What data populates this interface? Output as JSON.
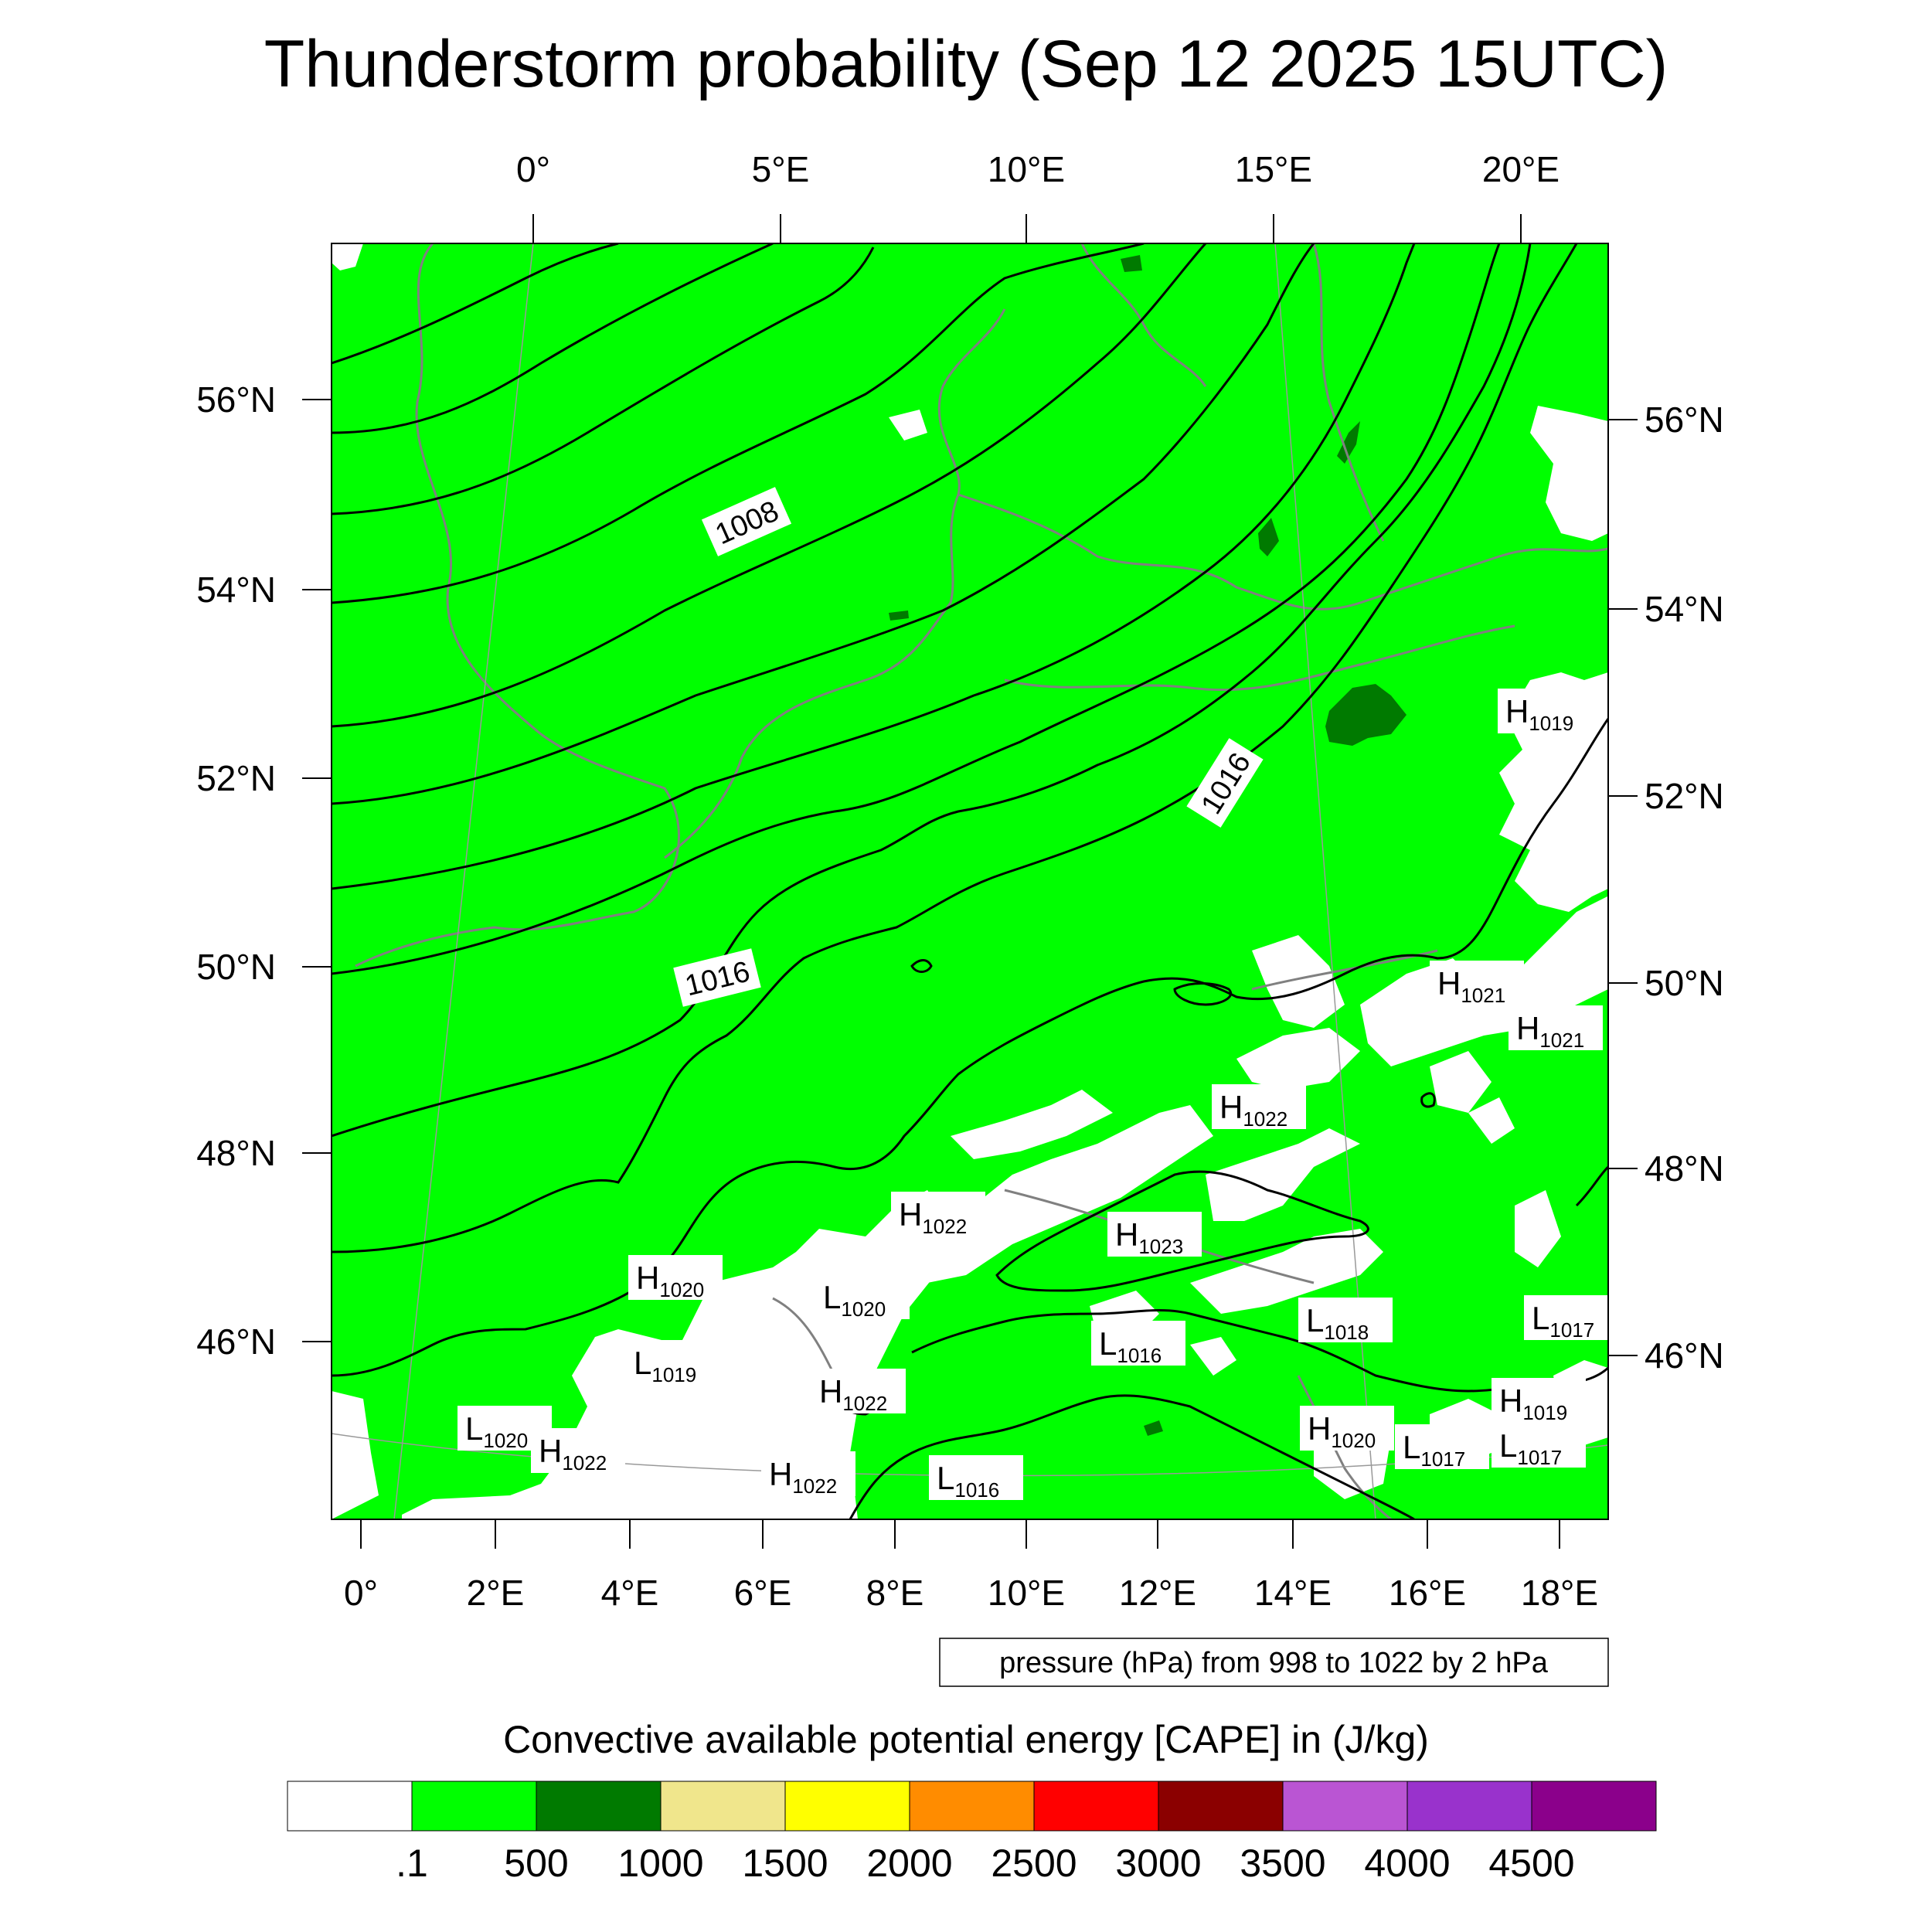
{
  "title": "Thunderstorm probability (Sep 12 2025 15UTC)",
  "top_lon_labels": [
    "0°",
    "5°E",
    "10°E",
    "15°E",
    "20°E"
  ],
  "bottom_lon_labels": [
    "0°",
    "2°E",
    "4°E",
    "6°E",
    "8°E",
    "10°E",
    "12°E",
    "14°E",
    "16°E",
    "18°E"
  ],
  "left_lat_labels": [
    "56°N",
    "54°N",
    "52°N",
    "50°N",
    "48°N",
    "46°N"
  ],
  "right_lat_labels": [
    "56°N",
    "54°N",
    "52°N",
    "50°N",
    "48°N",
    "46°N"
  ],
  "isobar_labels": [
    {
      "text": "1008"
    },
    {
      "text": "1016"
    },
    {
      "text": "1016"
    }
  ],
  "pressure_centers": [
    {
      "type": "H",
      "value": "1019"
    },
    {
      "type": "H",
      "value": "1021"
    },
    {
      "type": "H",
      "value": "1021"
    },
    {
      "type": "H",
      "value": "1022"
    },
    {
      "type": "H",
      "value": "1022"
    },
    {
      "type": "H",
      "value": "1023"
    },
    {
      "type": "H",
      "value": "1020"
    },
    {
      "type": "L",
      "value": "1020"
    },
    {
      "type": "L",
      "value": "1016"
    },
    {
      "type": "L",
      "value": "1018"
    },
    {
      "type": "L",
      "value": "1017"
    },
    {
      "type": "L",
      "value": "1019"
    },
    {
      "type": "H",
      "value": "1022"
    },
    {
      "type": "H",
      "value": "1019"
    },
    {
      "type": "L",
      "value": "1020"
    },
    {
      "type": "H",
      "value": "1022"
    },
    {
      "type": "H",
      "value": "1020"
    },
    {
      "type": "L",
      "value": "1017"
    },
    {
      "type": "L",
      "value": "1017"
    },
    {
      "type": "H",
      "value": "1022"
    },
    {
      "type": "L",
      "value": "1016"
    }
  ],
  "contour_note": "pressure (hPa) from 998 to 1022 by 2 hPa",
  "colorbar": {
    "title": "Convective available potential energy [CAPE] in (J/kg)",
    "labels": [
      ".1",
      "500",
      "1000",
      "1500",
      "2000",
      "2500",
      "3000",
      "3500",
      "4000",
      "4500"
    ],
    "colors": [
      "#ffffff",
      "#00ff00",
      "#007a00",
      "#f0e68c",
      "#ffff00",
      "#ff8c00",
      "#ff0000",
      "#8b0000",
      "#ba55d3",
      "#9932cc",
      "#8b008b"
    ]
  },
  "colors": {
    "cape_green": "#00ff00",
    "cape_dark_green": "#007a00",
    "isobar": "#000000",
    "coastline": "#808080"
  }
}
